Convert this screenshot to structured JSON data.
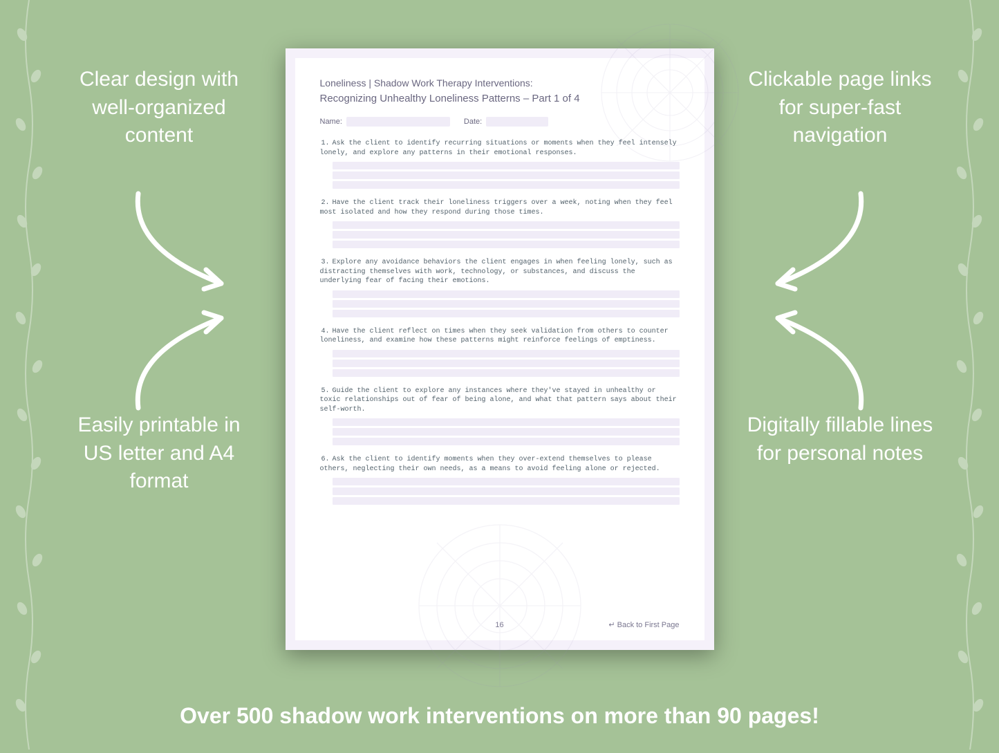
{
  "background_color": "#a5c297",
  "callouts": {
    "top_left": "Clear design with well-organized content",
    "top_right": "Clickable page links for super-fast navigation",
    "bottom_left": "Easily printable in US letter and A4 format",
    "bottom_right": "Digitally fillable lines for personal notes"
  },
  "bottom_banner": "Over 500 shadow work interventions on more than 90 pages!",
  "document": {
    "title_line1": "Loneliness | Shadow Work Therapy Interventions:",
    "title_line2": "Recognizing Unhealthy Loneliness Patterns  – Part 1 of 4",
    "name_label": "Name:",
    "date_label": "Date:",
    "page_number": "16",
    "back_link": "↵ Back to First Page",
    "questions": [
      "Ask the client to identify recurring situations or moments when they feel intensely lonely, and explore any patterns in their emotional responses.",
      "Have the client track their loneliness triggers over a week, noting when they feel most isolated and how they respond during those times.",
      "Explore any avoidance behaviors the client engages in when feeling lonely, such as distracting themselves with work, technology, or substances, and discuss the underlying fear of facing their emotions.",
      "Have the client reflect on times when they seek validation from others to counter loneliness, and examine how these patterns might reinforce feelings of emptiness.",
      "Guide the client to explore any instances where they've stayed in unhealthy or toxic relationships out of fear of being alone, and what that pattern says about their self-worth.",
      "Ask the client to identify moments when they over-extend themselves to please others, neglecting their own needs, as a means to avoid feeling alone or rejected."
    ],
    "answer_lines_per_question": 3,
    "colors": {
      "page_bg": "#f5f1fa",
      "inner_bg": "#ffffff",
      "fill_line": "#f0ecf7",
      "heading_text": "#6a6780",
      "body_text": "#52616b"
    }
  },
  "callout_text_color": "#ffffff",
  "callout_fontsize": 30,
  "banner_fontsize": 32
}
